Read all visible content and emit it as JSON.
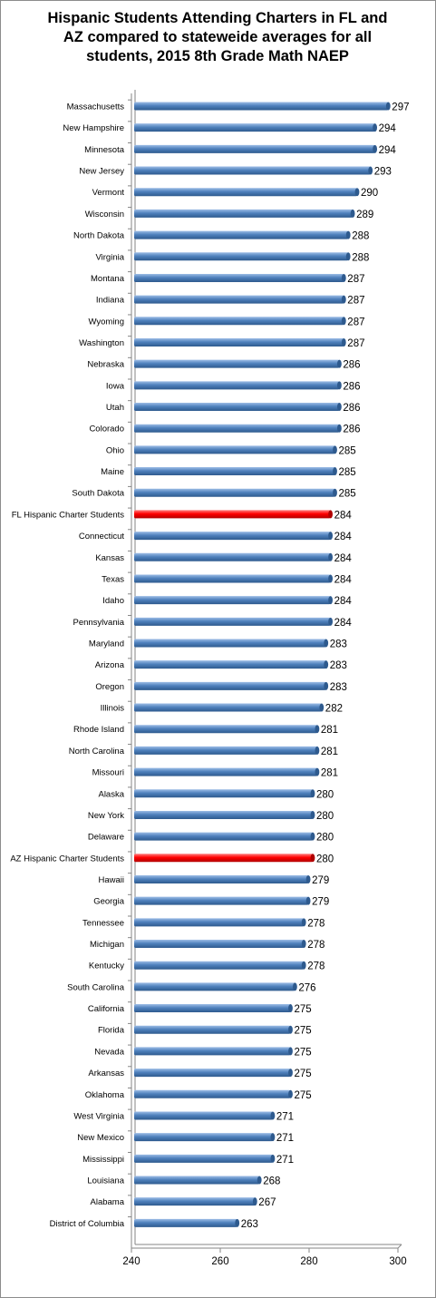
{
  "chart_data": {
    "type": "bar",
    "orientation": "horizontal",
    "style": "3d-cylinder",
    "title_lines": [
      "Hispanic Students Attending Charters in FL and",
      "AZ compared to stateweide averages for all",
      "students, 2015 8th Grade Math NAEP"
    ],
    "xlim": [
      240,
      300
    ],
    "xticks": [
      240,
      260,
      280,
      300
    ],
    "categories": [
      "Massachusetts",
      "New Hampshire",
      "Minnesota",
      "New Jersey",
      "Vermont",
      "Wisconsin",
      "North Dakota",
      "Virginia",
      "Montana",
      "Indiana",
      "Wyoming",
      "Washington",
      "Nebraska",
      "Iowa",
      "Utah",
      "Colorado",
      "Ohio",
      "Maine",
      "South Dakota",
      "FL Hispanic Charter Students",
      "Connecticut",
      "Kansas",
      "Texas",
      "Idaho",
      "Pennsylvania",
      "Maryland",
      "Arizona",
      "Oregon",
      "Illinois",
      "Rhode Island",
      "North Carolina",
      "Missouri",
      "Alaska",
      "New York",
      "Delaware",
      "AZ Hispanic Charter Students",
      "Hawaii",
      "Georgia",
      "Tennessee",
      "Michigan",
      "Kentucky",
      "South Carolina",
      "California",
      "Florida",
      "Nevada",
      "Arkansas",
      "Oklahoma",
      "West Virginia",
      "New Mexico",
      "Mississippi",
      "Louisiana",
      "Alabama",
      "District of Columbia"
    ],
    "values": [
      297,
      294,
      294,
      293,
      290,
      289,
      288,
      288,
      287,
      287,
      287,
      287,
      286,
      286,
      286,
      286,
      285,
      285,
      285,
      284,
      284,
      284,
      284,
      284,
      284,
      283,
      283,
      283,
      282,
      281,
      281,
      281,
      280,
      280,
      280,
      280,
      279,
      279,
      278,
      278,
      278,
      276,
      275,
      275,
      275,
      275,
      275,
      271,
      271,
      271,
      268,
      267,
      263
    ],
    "highlighted": [
      "FL Hispanic Charter Students",
      "AZ Hispanic Charter Students"
    ],
    "colors": {
      "bar": "#4f81bd",
      "bar_dark": "#2e5a8e",
      "bar_light": "#9dbde6",
      "highlight": "#ff0000",
      "highlight_dark": "#b00000",
      "highlight_light": "#ff8080",
      "axis": "#868686"
    }
  }
}
